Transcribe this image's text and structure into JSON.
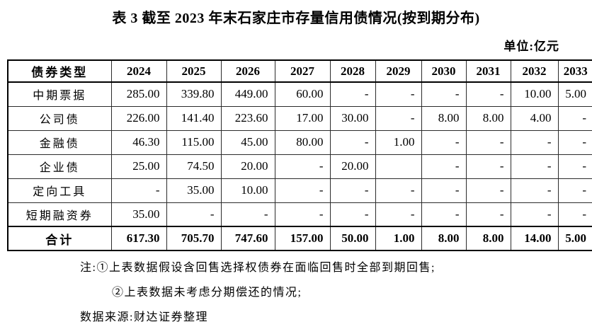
{
  "title": "表 3 截至 2023 年末石家庄市存量信用债情况(按到期分布)",
  "unit_label": "单位:亿元",
  "table": {
    "header": [
      "债券类型",
      "2024",
      "2025",
      "2026",
      "2027",
      "2028",
      "2029",
      "2030",
      "2031",
      "2032",
      "2033"
    ],
    "rows": [
      {
        "label": "中期票据",
        "values": [
          "285.00",
          "339.80",
          "449.00",
          "60.00",
          "-",
          "-",
          "-",
          "-",
          "10.00",
          "5.00"
        ]
      },
      {
        "label": "公司债",
        "values": [
          "226.00",
          "141.40",
          "223.60",
          "17.00",
          "30.00",
          "-",
          "8.00",
          "8.00",
          "4.00",
          "-"
        ]
      },
      {
        "label": "金融债",
        "values": [
          "46.30",
          "115.00",
          "45.00",
          "80.00",
          "-",
          "1.00",
          "-",
          "-",
          "-",
          "-"
        ]
      },
      {
        "label": "企业债",
        "values": [
          "25.00",
          "74.50",
          "20.00",
          "-",
          "20.00",
          "",
          "-",
          "-",
          "-",
          "-"
        ]
      },
      {
        "label": "定向工具",
        "values": [
          "-",
          "35.00",
          "10.00",
          "-",
          "-",
          "-",
          "-",
          "-",
          "-",
          "-"
        ]
      },
      {
        "label": "短期融资券",
        "values": [
          "35.00",
          "-",
          "-",
          "-",
          "-",
          "-",
          "-",
          "-",
          "-",
          "-"
        ]
      }
    ],
    "total_row": {
      "label": "合计",
      "values": [
        "617.30",
        "705.70",
        "747.60",
        "157.00",
        "50.00",
        "1.00",
        "8.00",
        "8.00",
        "14.00",
        "5.00"
      ]
    }
  },
  "notes": [
    "注:①上表数据假设含回售选择权债券在面临回售时全部到期回售;",
    "②上表数据未考虑分期偿还的情况;"
  ],
  "source": "数据来源:财达证券整理"
}
